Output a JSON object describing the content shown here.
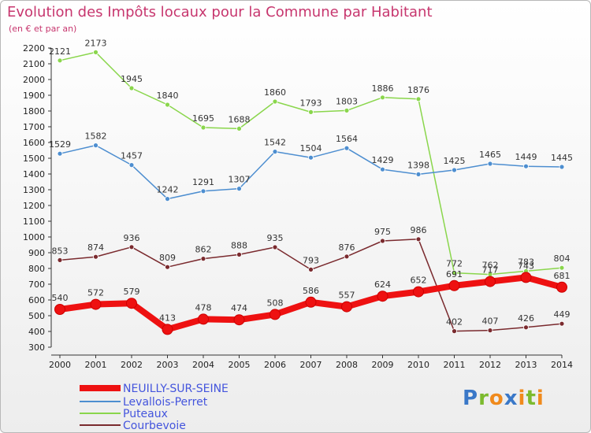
{
  "chart_data": {
    "type": "line",
    "title": "Evolution des Impôts locaux pour la Commune par Habitant",
    "subtitle": "(en € et par an)",
    "categories": [
      "2000",
      "2001",
      "2002",
      "2003",
      "2004",
      "2005",
      "2006",
      "2007",
      "2008",
      "2009",
      "2010",
      "2011",
      "2012",
      "2013",
      "2014"
    ],
    "y_ticks": [
      300,
      400,
      500,
      600,
      700,
      800,
      900,
      1000,
      1100,
      1200,
      1300,
      1400,
      1500,
      1600,
      1700,
      1800,
      1900,
      2000,
      2100,
      2200
    ],
    "ylim": [
      300,
      2200
    ],
    "grid": false,
    "legend_position": "bottom-left",
    "series": [
      {
        "name": "NEUILLY-SUR-SEINE",
        "color": "#ee1111",
        "values": [
          540,
          572,
          579,
          413,
          478,
          474,
          508,
          586,
          557,
          624,
          652,
          691,
          717,
          743,
          681
        ]
      },
      {
        "name": "Levallois-Perret",
        "color": "#4d8ed0",
        "values": [
          1529,
          1582,
          1457,
          1242,
          1291,
          1307,
          1542,
          1504,
          1564,
          1429,
          1398,
          1425,
          1465,
          1449,
          1445
        ]
      },
      {
        "name": "Puteaux",
        "color": "#8ad64c",
        "values": [
          2121,
          2173,
          1945,
          1840,
          1695,
          1688,
          1860,
          1793,
          1803,
          1886,
          1876,
          772,
          762,
          783,
          804
        ]
      },
      {
        "name": "Courbevoie",
        "color": "#7a2a2e",
        "values": [
          853,
          874,
          936,
          809,
          862,
          888,
          935,
          793,
          876,
          975,
          986,
          402,
          407,
          426,
          449
        ]
      }
    ]
  },
  "logo": {
    "letters": [
      "P",
      "r",
      "o",
      "x",
      "i",
      "t",
      "i"
    ],
    "colors": [
      "#3a78c8",
      "#7cba2e",
      "#f08a1c",
      "#3a78c8",
      "#f08a1c",
      "#7cba2e",
      "#f08a1c"
    ]
  }
}
